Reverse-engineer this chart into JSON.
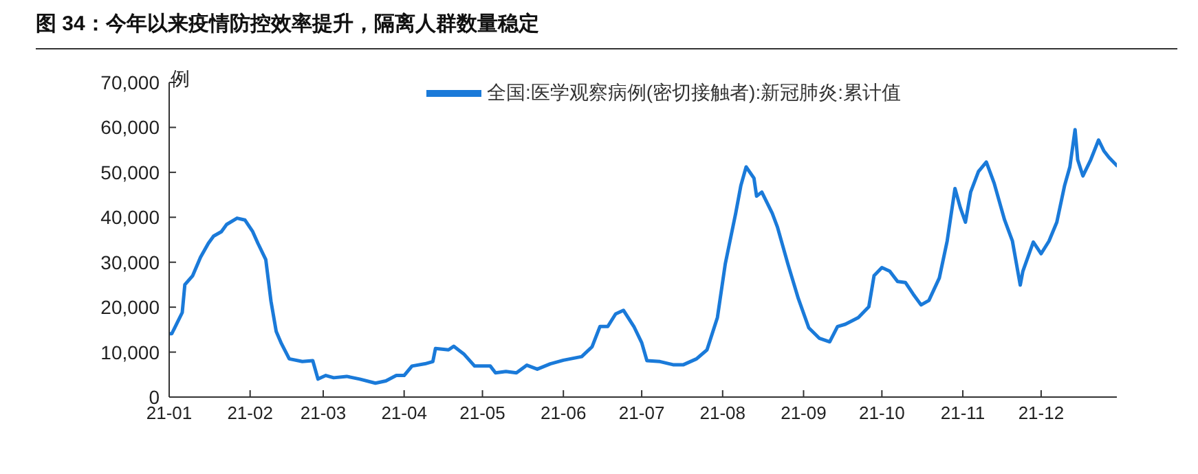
{
  "chart_data": {
    "type": "line",
    "title": "图 34：今年以来疫情防控效率提升，隔离人群数量稳定",
    "ylabel": "例",
    "x": [
      "--01-01",
      "--01-02",
      "--01-06",
      "--01-07",
      "--01-10",
      "--01-13",
      "--01-16",
      "--01-18",
      "--01-21",
      "--01-23",
      "--01-27",
      "--01-30",
      "--02-02",
      "--02-04",
      "--02-07",
      "--02-09",
      "--02-11",
      "--02-13",
      "--02-16",
      "--02-21",
      "--02-25",
      "--02-27",
      "--03-02",
      "--03-05",
      "--03-10",
      "--03-15",
      "--03-21",
      "--03-25",
      "--03-29",
      "--04-01",
      "--04-04",
      "--04-09",
      "--04-12",
      "--04-13",
      "--04-18",
      "--04-20",
      "--04-24",
      "--04-28",
      "--05-04",
      "--05-06",
      "--05-10",
      "--05-14",
      "--05-18",
      "--05-22",
      "--05-27",
      "--06-01",
      "--06-08",
      "--06-12",
      "--06-15",
      "--06-18",
      "--06-21",
      "--06-24",
      "--06-28",
      "--07-01",
      "--07-03",
      "--07-08",
      "--07-13",
      "--07-17",
      "--07-22",
      "--07-26",
      "--07-30",
      "--08-02",
      "--08-06",
      "--08-08",
      "--08-10",
      "--08-13",
      "--08-14",
      "--08-16",
      "--08-20",
      "--08-22",
      "--08-26",
      "--08-30",
      "--09-03",
      "--09-07",
      "--09-11",
      "--09-14",
      "--09-17",
      "--09-22",
      "--09-26",
      "--09-28",
      "--10-01",
      "--10-04",
      "--10-07",
      "--10-10",
      "--10-13",
      "--10-16",
      "--10-19",
      "--10-23",
      "--10-26",
      "--10-29",
      "--10-31",
      "--11-02",
      "--11-04",
      "--11-07",
      "--11-10",
      "--11-13",
      "--11-17",
      "--11-20",
      "--11-23",
      "--11-24",
      "--11-28",
      "--12-01",
      "--12-04",
      "--12-07",
      "--12-10",
      "--12-12",
      "--12-14",
      "--12-15",
      "--12-17",
      "--12-20",
      "--12-23",
      "--12-25",
      "--12-27",
      "--12-30"
    ],
    "series": [
      {
        "name": "全国:医学观察病例(密切接触者):新冠肺炎:累计值",
        "color": "#1a7ad9",
        "values": [
          14100,
          14100,
          18800,
          25000,
          27000,
          31100,
          34200,
          35800,
          36800,
          38400,
          39800,
          39400,
          36800,
          34200,
          30600,
          21300,
          14600,
          11900,
          8500,
          7900,
          8100,
          4000,
          4800,
          4300,
          4600,
          4000,
          3100,
          3600,
          4800,
          4800,
          6900,
          7400,
          7900,
          10800,
          10500,
          11300,
          9500,
          6900,
          6900,
          5400,
          5700,
          5400,
          7100,
          6200,
          7400,
          8200,
          9000,
          11200,
          15700,
          15700,
          18500,
          19300,
          15700,
          12100,
          8100,
          7900,
          7200,
          7200,
          8500,
          10500,
          17700,
          29600,
          40900,
          47100,
          51200,
          48700,
          44700,
          45600,
          40900,
          37800,
          29600,
          21900,
          15400,
          13100,
          12300,
          15700,
          16200,
          17700,
          20100,
          27000,
          28800,
          28000,
          25700,
          25500,
          22900,
          20500,
          21500,
          26500,
          34700,
          46400,
          42200,
          38900,
          45600,
          50200,
          52300,
          47600,
          39400,
          34700,
          24900,
          28000,
          34500,
          31900,
          34700,
          38900,
          47100,
          51200,
          59500,
          52800,
          49200,
          52800,
          57200,
          54800,
          53300,
          51500
        ]
      }
    ],
    "xlim": [
      "--01-01",
      "--12-30"
    ],
    "xticks": [
      {
        "value": "--01-01",
        "label": "21-01"
      },
      {
        "value": "--02-01",
        "label": "21-02"
      },
      {
        "value": "--03-01",
        "label": "21-03"
      },
      {
        "value": "--04-01",
        "label": "21-04"
      },
      {
        "value": "--05-01",
        "label": "21-05"
      },
      {
        "value": "--06-01",
        "label": "21-06"
      },
      {
        "value": "--07-01",
        "label": "21-07"
      },
      {
        "value": "--08-01",
        "label": "21-08"
      },
      {
        "value": "--09-01",
        "label": "21-09"
      },
      {
        "value": "--10-01",
        "label": "21-10"
      },
      {
        "value": "--11-01",
        "label": "21-11"
      },
      {
        "value": "--12-01",
        "label": "21-12"
      }
    ],
    "ylim": [
      0,
      70000
    ],
    "yticks": [
      0,
      {
        "value": 10000,
        "label": "10,000"
      },
      {
        "value": 20000,
        "label": "20,000"
      },
      {
        "value": 30000,
        "label": "30,000"
      },
      {
        "value": 40000,
        "label": "40,000"
      },
      {
        "value": 50000,
        "label": "50,000"
      },
      {
        "value": 60000,
        "label": "60,000"
      },
      {
        "value": 70000,
        "label": "70,000"
      }
    ],
    "grid": false,
    "legend": "top",
    "marker": "none",
    "line_style": "solid"
  }
}
